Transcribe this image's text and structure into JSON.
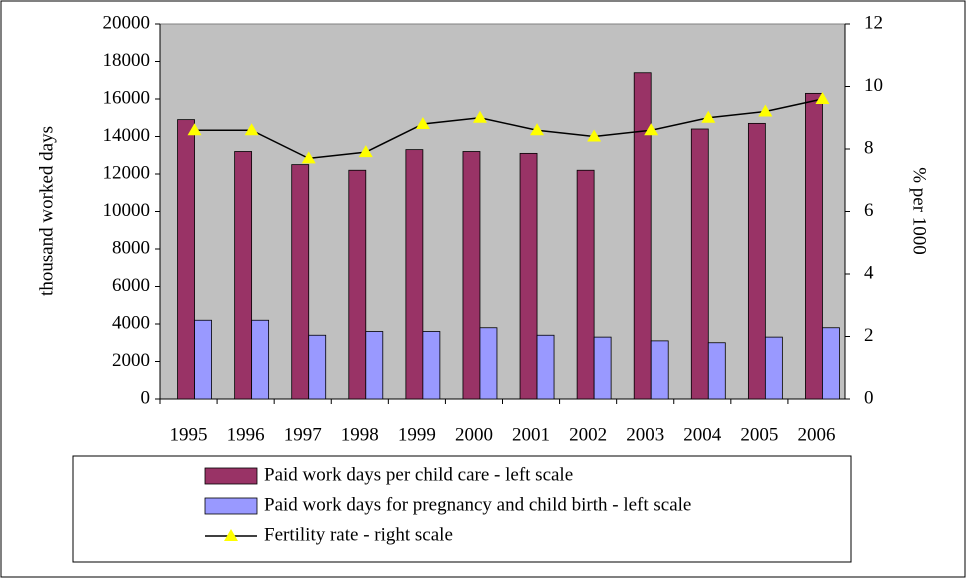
{
  "chart_data": {
    "type": "bar",
    "y_label": "thousand worked days",
    "y2_label": "% per 1000",
    "categories": [
      "1995",
      "1996",
      "1997",
      "1998",
      "1999",
      "2000",
      "2001",
      "2002",
      "2003",
      "2004",
      "2005",
      "2006"
    ],
    "series": [
      {
        "name": "Paid work days per child care - left scale",
        "type": "bar",
        "color": "#993366",
        "values": [
          14900,
          13200,
          12500,
          12200,
          13300,
          13200,
          13100,
          12200,
          17400,
          14400,
          14700,
          16300
        ]
      },
      {
        "name": "Paid work days for pregnancy and child birth - left scale",
        "type": "bar",
        "color": "#9999ff",
        "values": [
          4200,
          4200,
          3400,
          3600,
          3600,
          3800,
          3400,
          3300,
          3100,
          3000,
          3300,
          3800
        ]
      },
      {
        "name": "Fertility rate - right scale",
        "type": "line",
        "axis": "y2",
        "color": "#000000",
        "marker_color": "#ffff00",
        "values": [
          8.6,
          8.6,
          7.7,
          7.9,
          8.8,
          9.0,
          8.6,
          8.4,
          8.6,
          9.0,
          9.2,
          9.6
        ]
      }
    ],
    "ylim": [
      0,
      20000
    ],
    "yticks": [
      0,
      2000,
      4000,
      6000,
      8000,
      10000,
      12000,
      14000,
      16000,
      18000,
      20000
    ],
    "y2lim": [
      0,
      12
    ],
    "y2ticks": [
      0,
      2,
      4,
      6,
      8,
      10,
      12
    ],
    "plot_background": "#c0c0c0"
  }
}
